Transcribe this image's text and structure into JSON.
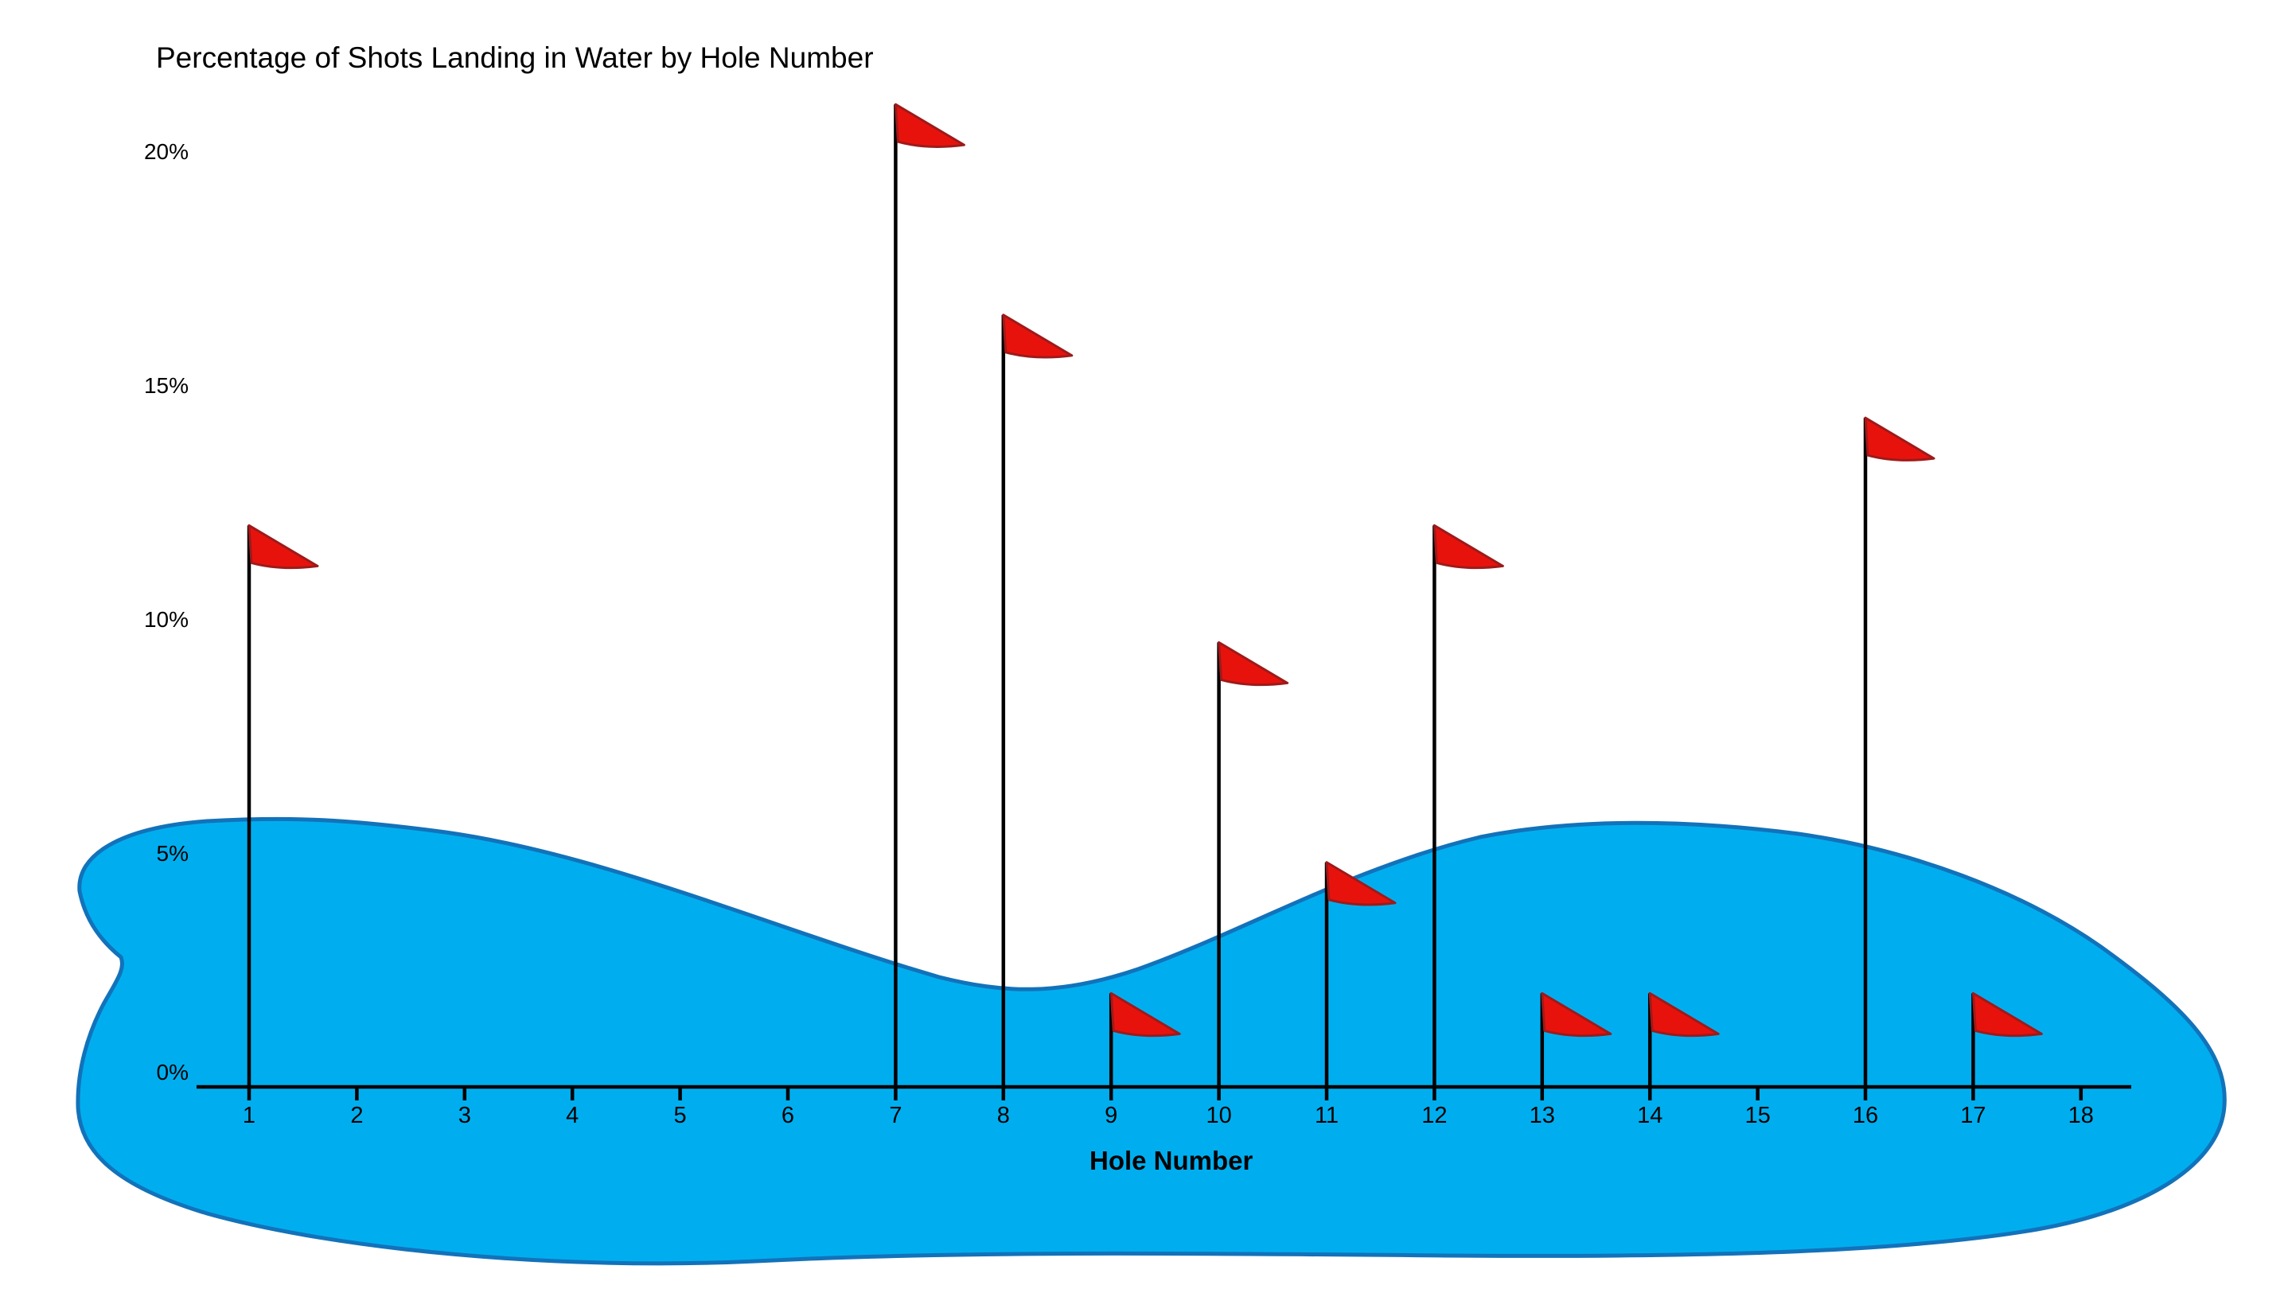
{
  "title": "Percentage of Shots Landing in Water by Hole Number",
  "axes": {
    "x": {
      "label": "Hole Number",
      "ticks": [
        "1",
        "2",
        "3",
        "4",
        "5",
        "6",
        "7",
        "8",
        "9",
        "10",
        "11",
        "12",
        "13",
        "14",
        "15",
        "16",
        "17",
        "18"
      ]
    },
    "y": {
      "ticks": [
        {
          "label": "0%",
          "value": 0
        },
        {
          "label": "5%",
          "value": 5
        },
        {
          "label": "10%",
          "value": 10
        },
        {
          "label": "15%",
          "value": 15
        },
        {
          "label": "20%",
          "value": 20
        }
      ]
    }
  },
  "colors": {
    "water_fill": "#00AEEF",
    "water_stroke": "#1272BA",
    "flag_fill": "#E8120D",
    "flag_stroke": "#9E1A1A",
    "pole": "#000000",
    "axis": "#000000",
    "text": "#000000"
  },
  "chart_data": {
    "type": "bar",
    "variant": "golf-flag-pictograph",
    "title": "Percentage of Shots Landing in Water by Hole Number",
    "xlabel": "Hole Number",
    "ylabel": "",
    "unit": "%",
    "categories": [
      1,
      2,
      3,
      4,
      5,
      6,
      7,
      8,
      9,
      10,
      11,
      12,
      13,
      14,
      15,
      16,
      17,
      18
    ],
    "values": [
      12,
      0,
      0,
      0,
      0,
      0,
      21,
      16.5,
      2,
      9.5,
      4.8,
      12,
      2,
      2,
      0,
      14.3,
      2,
      0
    ],
    "ylim": [
      0,
      22
    ],
    "y_ticks": [
      0,
      5,
      10,
      15,
      20
    ],
    "grid": false,
    "legend": false,
    "annotations": "Flag pole height marks each hole's percentage; blue pond shape spans the background at the bottom."
  }
}
